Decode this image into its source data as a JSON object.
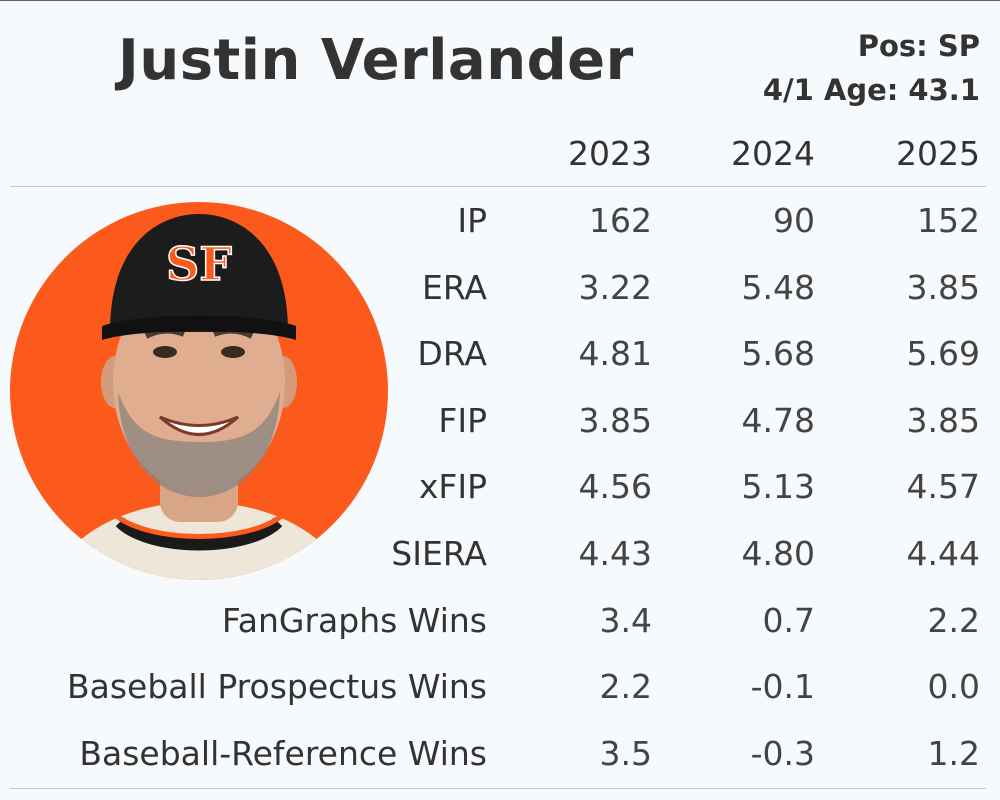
{
  "player": {
    "name": "Justin Verlander",
    "position": "Pos: SP",
    "age": "4/1 Age: 43.1"
  },
  "years": [
    "2023",
    "2024",
    "2025"
  ],
  "stats": [
    {
      "label": "IP",
      "values": [
        "162",
        "90",
        "152"
      ]
    },
    {
      "label": "ERA",
      "values": [
        "3.22",
        "5.48",
        "3.85"
      ]
    },
    {
      "label": "DRA",
      "values": [
        "4.81",
        "5.68",
        "5.69"
      ]
    },
    {
      "label": "FIP",
      "values": [
        "3.85",
        "4.78",
        "3.85"
      ]
    },
    {
      "label": "xFIP",
      "values": [
        "4.56",
        "5.13",
        "4.57"
      ]
    },
    {
      "label": "SIERA",
      "values": [
        "4.43",
        "4.80",
        "4.44"
      ]
    },
    {
      "label": "FanGraphs Wins",
      "values": [
        "3.4",
        "0.7",
        "2.2"
      ]
    },
    {
      "label": "Baseball Prospectus Wins",
      "values": [
        "2.2",
        "-0.1",
        "0.0"
      ]
    },
    {
      "label": "Baseball-Reference Wins",
      "values": [
        "3.5",
        "-0.3",
        "1.2"
      ]
    }
  ],
  "colors": {
    "background": "#f7fafc",
    "headshot_bg": "#fc5a1c",
    "cap": "#1c1c1c",
    "logo": "#fd5a1e",
    "text": "#333333"
  },
  "icons": {
    "headshot": "player-headshot-icon",
    "team_logo": "sf-giants-logo-icon"
  }
}
